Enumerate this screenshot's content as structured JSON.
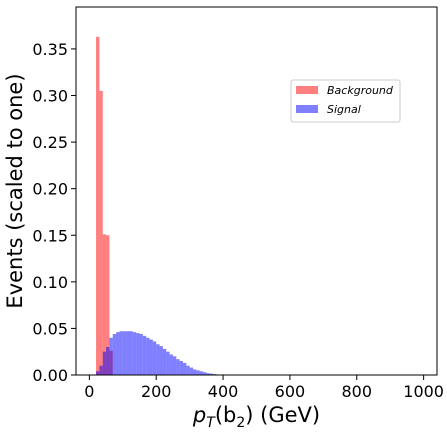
{
  "chart_data": {
    "type": "bar",
    "style": "overlaid histograms",
    "xlabel_parts": [
      "p",
      "T",
      "(b",
      "2",
      ") (GeV)"
    ],
    "ylabel": "Events (scaled to one)",
    "xlim": [
      -40,
      1040
    ],
    "ylim": [
      0,
      0.395
    ],
    "xticks": [
      0,
      200,
      400,
      600,
      800,
      1000
    ],
    "yticks": [
      "0.00",
      "0.05",
      "0.10",
      "0.15",
      "0.20",
      "0.25",
      "0.30",
      "0.35"
    ],
    "legend_position": "upper-right",
    "series": [
      {
        "name": "Background",
        "color": "#ff0000",
        "alpha": 0.5,
        "bins": [
          {
            "x0": 20,
            "x1": 30,
            "y": 0.363
          },
          {
            "x0": 30,
            "x1": 40,
            "y": 0.305
          },
          {
            "x0": 40,
            "x1": 50,
            "y": 0.151
          },
          {
            "x0": 50,
            "x1": 60,
            "y": 0.15
          },
          {
            "x0": 60,
            "x1": 70,
            "y": 0.026
          }
        ]
      },
      {
        "name": "Signal",
        "color": "#0000ff",
        "alpha": 0.5,
        "bins": [
          {
            "x0": 20,
            "x1": 30,
            "y": 0.004
          },
          {
            "x0": 30,
            "x1": 40,
            "y": 0.01
          },
          {
            "x0": 40,
            "x1": 50,
            "y": 0.025
          },
          {
            "x0": 50,
            "x1": 60,
            "y": 0.03
          },
          {
            "x0": 60,
            "x1": 70,
            "y": 0.04
          },
          {
            "x0": 70,
            "x1": 80,
            "y": 0.044
          },
          {
            "x0": 80,
            "x1": 90,
            "y": 0.046
          },
          {
            "x0": 90,
            "x1": 100,
            "y": 0.047
          },
          {
            "x0": 100,
            "x1": 110,
            "y": 0.047
          },
          {
            "x0": 110,
            "x1": 120,
            "y": 0.047
          },
          {
            "x0": 120,
            "x1": 130,
            "y": 0.047
          },
          {
            "x0": 130,
            "x1": 140,
            "y": 0.046
          },
          {
            "x0": 140,
            "x1": 150,
            "y": 0.045
          },
          {
            "x0": 150,
            "x1": 160,
            "y": 0.044
          },
          {
            "x0": 160,
            "x1": 170,
            "y": 0.042
          },
          {
            "x0": 170,
            "x1": 180,
            "y": 0.04
          },
          {
            "x0": 180,
            "x1": 190,
            "y": 0.038
          },
          {
            "x0": 190,
            "x1": 200,
            "y": 0.036
          },
          {
            "x0": 200,
            "x1": 210,
            "y": 0.033
          },
          {
            "x0": 210,
            "x1": 220,
            "y": 0.031
          },
          {
            "x0": 220,
            "x1": 230,
            "y": 0.028
          },
          {
            "x0": 230,
            "x1": 240,
            "y": 0.025
          },
          {
            "x0": 240,
            "x1": 250,
            "y": 0.022
          },
          {
            "x0": 250,
            "x1": 260,
            "y": 0.02
          },
          {
            "x0": 260,
            "x1": 270,
            "y": 0.017
          },
          {
            "x0": 270,
            "x1": 280,
            "y": 0.015
          },
          {
            "x0": 280,
            "x1": 290,
            "y": 0.013
          },
          {
            "x0": 290,
            "x1": 300,
            "y": 0.01
          },
          {
            "x0": 300,
            "x1": 310,
            "y": 0.008
          },
          {
            "x0": 310,
            "x1": 320,
            "y": 0.006
          },
          {
            "x0": 320,
            "x1": 330,
            "y": 0.005
          },
          {
            "x0": 330,
            "x1": 340,
            "y": 0.004
          },
          {
            "x0": 340,
            "x1": 350,
            "y": 0.003
          },
          {
            "x0": 350,
            "x1": 360,
            "y": 0.002
          },
          {
            "x0": 360,
            "x1": 370,
            "y": 0.0015
          },
          {
            "x0": 370,
            "x1": 380,
            "y": 0.001
          },
          {
            "x0": 380,
            "x1": 390,
            "y": 0.0005
          }
        ]
      }
    ]
  }
}
